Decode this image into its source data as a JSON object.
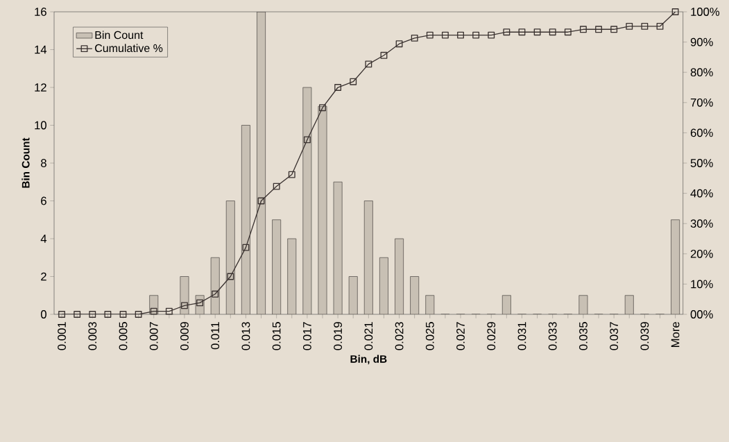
{
  "chart_data": {
    "type": "bar",
    "xlabel": "Bin, dB",
    "ylabel": "Bin Count",
    "categories": [
      "0.001",
      null,
      "0.003",
      null,
      "0.005",
      null,
      "0.007",
      null,
      "0.009",
      null,
      "0.011",
      null,
      "0.013",
      null,
      "0.015",
      null,
      "0.017",
      null,
      "0.019",
      null,
      "0.021",
      null,
      "0.023",
      null,
      "0.025",
      null,
      "0.027",
      null,
      "0.029",
      null,
      "0.031",
      null,
      "0.033",
      null,
      "0.035",
      null,
      "0.037",
      null,
      "0.039",
      null,
      "More"
    ],
    "series": [
      {
        "name": "Bin Count",
        "color": "#c8c0b4",
        "values": [
          0,
          0,
          0,
          0,
          0,
          0,
          1,
          0,
          2,
          1,
          3,
          6,
          10,
          16,
          5,
          4,
          12,
          11,
          7,
          2,
          6,
          3,
          4,
          2,
          1,
          0,
          0,
          0,
          0,
          1,
          0,
          0,
          0,
          0,
          1,
          0,
          0,
          1,
          0,
          0,
          5
        ]
      },
      {
        "name": "Cumulative %",
        "type": "line",
        "axis": "y2",
        "color": "#3a3230",
        "marker": "square",
        "values": [
          0,
          0,
          0,
          0,
          0,
          0,
          1.0,
          1.0,
          2.9,
          3.8,
          6.7,
          12.5,
          22.1,
          37.5,
          42.3,
          46.2,
          57.7,
          68.3,
          75.0,
          76.9,
          82.7,
          85.6,
          89.4,
          91.3,
          92.3,
          92.3,
          92.3,
          92.3,
          92.3,
          93.3,
          93.3,
          93.3,
          93.3,
          93.3,
          94.2,
          94.2,
          94.2,
          95.2,
          95.2,
          95.2,
          100
        ]
      }
    ],
    "ylim": [
      0,
      16
    ],
    "yticks": [
      0,
      2,
      4,
      6,
      8,
      10,
      12,
      14,
      16
    ],
    "y2lim": [
      0,
      100
    ],
    "y2ticks": [
      {
        "value": 0,
        "label": "00%"
      },
      {
        "value": 10,
        "label": "10%"
      },
      {
        "value": 20,
        "label": "20%"
      },
      {
        "value": 30,
        "label": "30%"
      },
      {
        "value": 40,
        "label": "40%"
      },
      {
        "value": 50,
        "label": "50%"
      },
      {
        "value": 60,
        "label": "60%"
      },
      {
        "value": 70,
        "label": "70%"
      },
      {
        "value": 80,
        "label": "80%"
      },
      {
        "value": 90,
        "label": "90%"
      },
      {
        "value": 100,
        "label": "100%"
      }
    ],
    "legend": "top left"
  }
}
